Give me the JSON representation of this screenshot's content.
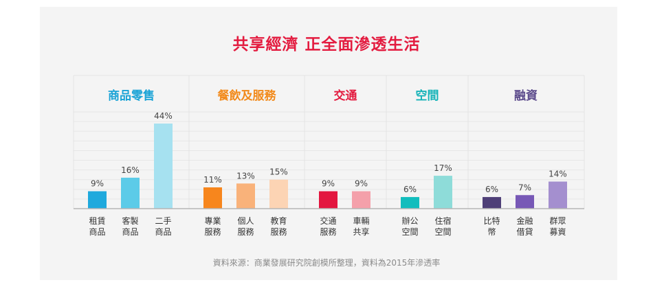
{
  "title": "共享經濟 正全面滲透生活",
  "source": "資料來源：商業發展研究院創模所整理，資料為2015年滲透率",
  "chart_data": {
    "type": "bar",
    "title": "共享經濟 正全面滲透生活",
    "ylim": [
      0,
      50
    ],
    "value_suffix": "%",
    "grid": true,
    "groups": [
      {
        "name": "商品零售",
        "color": "#1aa3d6",
        "categories": [
          "租賃\n商品",
          "客製\n商品",
          "二手\n商品"
        ],
        "values": [
          9,
          16,
          44
        ],
        "colors": [
          "#1fa9dd",
          "#5ccbe8",
          "#a6e1f0"
        ]
      },
      {
        "name": "餐飲及服務",
        "color": "#f28a1b",
        "categories": [
          "專業\n服務",
          "個人\n服務",
          "教育\n服務"
        ],
        "values": [
          11,
          13,
          15
        ],
        "colors": [
          "#f7861d",
          "#f9b27a",
          "#fcd4b4"
        ]
      },
      {
        "name": "交通",
        "color": "#e31b3f",
        "categories": [
          "交通\n服務",
          "車輛\n共享"
        ],
        "values": [
          9,
          9
        ],
        "colors": [
          "#e3163f",
          "#f4a0aa"
        ]
      },
      {
        "name": "空間",
        "color": "#16b3b8",
        "categories": [
          "辦公\n空間",
          "住宿\n空間"
        ],
        "values": [
          6,
          17
        ],
        "colors": [
          "#12bdbd",
          "#8edcd9"
        ]
      },
      {
        "name": "融資",
        "color": "#5b4a8b",
        "categories": [
          "比特\n幣",
          "金融\n借貸",
          "群眾\n募資"
        ],
        "values": [
          6,
          7,
          14
        ],
        "colors": [
          "#4e3f77",
          "#7758b6",
          "#a48fcf"
        ]
      }
    ]
  }
}
